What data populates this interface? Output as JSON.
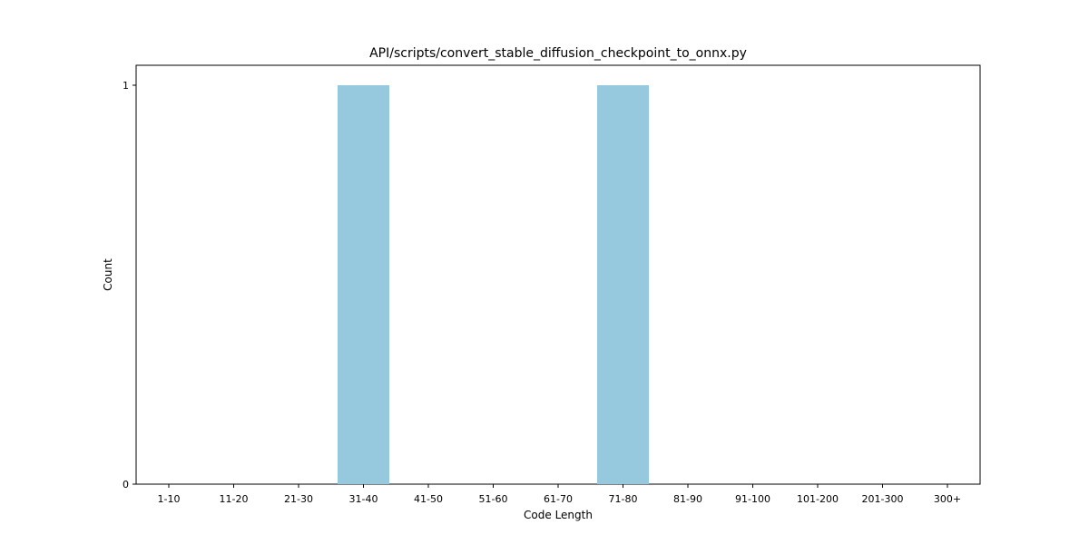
{
  "chart_data": {
    "type": "bar",
    "title": "API/scripts/convert_stable_diffusion_checkpoint_to_onnx.py",
    "xlabel": "Code Length",
    "ylabel": "Count",
    "categories": [
      "1-10",
      "11-20",
      "21-30",
      "31-40",
      "41-50",
      "51-60",
      "61-70",
      "71-80",
      "81-90",
      "91-100",
      "101-200",
      "201-300",
      "300+"
    ],
    "values": [
      0,
      0,
      0,
      1,
      0,
      0,
      0,
      1,
      0,
      0,
      0,
      0,
      0
    ],
    "ylim": [
      0,
      1.05
    ],
    "yticks": [
      0,
      1
    ],
    "grid": false,
    "bar_color": "#96c9de"
  }
}
